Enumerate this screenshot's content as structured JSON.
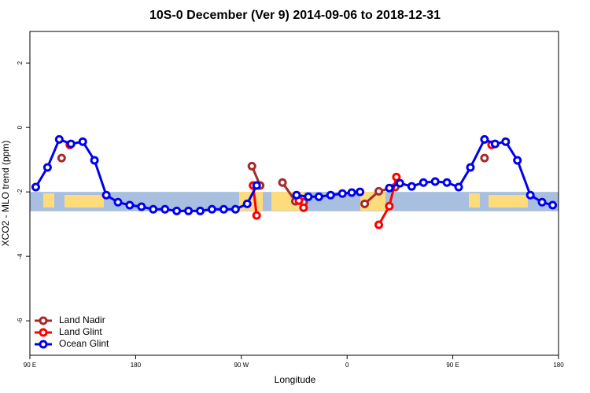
{
  "chart_data": {
    "type": "line",
    "title": "10S-0 December (Ver 9)   2014-09-06 to 2018-12-31",
    "xlabel": "Longitude",
    "ylabel": "XCO2 - MLO trend (ppm)",
    "xlim": [
      90,
      540
    ],
    "ylim": [
      -7.07,
      2.98
    ],
    "xticks": [
      {
        "value": 90,
        "label": "90 E"
      },
      {
        "value": 180,
        "label": "180"
      },
      {
        "value": 270,
        "label": "90 W"
      },
      {
        "value": 360,
        "label": "0"
      },
      {
        "value": 450,
        "label": "90 E"
      },
      {
        "value": 540,
        "label": "180"
      }
    ],
    "yticks": [
      -6,
      -4,
      -2,
      0,
      2
    ],
    "band": [
      -2.6,
      -2.0
    ],
    "band_color": "#a9bfdf",
    "legend": "bottom-left",
    "series": [
      {
        "name": "Land Nadir",
        "color": "#a52a2a",
        "x": [
          117,
          null,
          279,
          286,
          null,
          305,
          316,
          323,
          null,
          375,
          387,
          401,
          null,
          477
        ],
        "values": [
          -0.95,
          null,
          -1.2,
          -1.8,
          null,
          -1.71,
          -2.29,
          -2.32,
          null,
          -2.37,
          -1.98,
          -1.85,
          null,
          -0.95
        ]
      },
      {
        "name": "Land Glint",
        "color": "#ff0000",
        "x": [
          124,
          null,
          280,
          283,
          null,
          319,
          323,
          null,
          387,
          396,
          402,
          null,
          483
        ],
        "values": [
          -0.54,
          null,
          -1.8,
          -2.73,
          null,
          -2.27,
          -2.49,
          null,
          -3.02,
          -2.44,
          -1.54,
          null,
          -0.54
        ]
      },
      {
        "name": "Ocean Glint",
        "color": "#0000ee",
        "x": [
          95,
          105,
          115,
          125,
          135,
          145,
          155,
          165,
          175,
          185,
          195,
          205,
          215,
          225,
          235,
          245,
          255,
          265,
          275,
          283,
          null,
          317,
          327,
          336,
          346,
          356,
          364,
          371,
          null,
          396,
          405,
          415,
          425,
          435,
          445,
          455,
          465,
          477,
          486,
          495,
          505,
          516,
          526,
          535
        ],
        "values": [
          -1.85,
          -1.24,
          -0.37,
          -0.51,
          -0.44,
          -1.02,
          -2.1,
          -2.32,
          -2.41,
          -2.46,
          -2.54,
          -2.54,
          -2.59,
          -2.59,
          -2.59,
          -2.54,
          -2.54,
          -2.54,
          -2.37,
          -1.8,
          null,
          -2.1,
          -2.15,
          -2.15,
          -2.1,
          -2.05,
          -2.02,
          -2.0,
          null,
          -1.88,
          -1.73,
          -1.83,
          -1.71,
          -1.68,
          -1.71,
          -1.85,
          -1.24,
          -0.37,
          -0.51,
          -0.44,
          -1.02,
          -2.1,
          -2.32,
          -2.41
        ]
      }
    ]
  }
}
